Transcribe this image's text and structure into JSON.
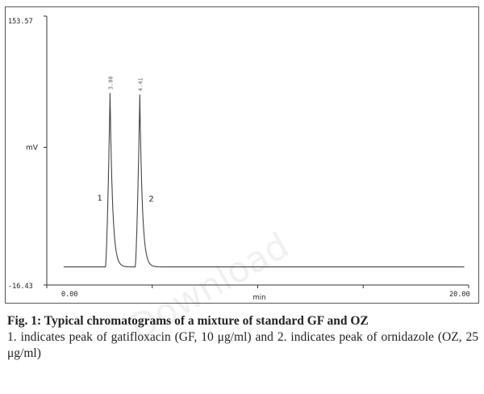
{
  "chart_data": {
    "type": "line",
    "title": "",
    "xlabel": "min",
    "ylabel": "mV",
    "xlim": [
      0.0,
      20.0
    ],
    "ylim": [
      -16.43,
      153.57
    ],
    "y_tick_labels": [
      "153.57",
      "-16.43"
    ],
    "x_tick_labels": [
      "0.00",
      "20.00"
    ],
    "baseline": -5,
    "grid": false,
    "legend": "none",
    "peaks": [
      {
        "label": "1",
        "retention_label": "3.00",
        "x": 3.0,
        "height": 110
      },
      {
        "label": "2",
        "retention_label": "4.41",
        "x": 4.41,
        "height": 109
      }
    ],
    "series": [
      {
        "values": [
          [
            0.0,
            -5
          ],
          [
            2.78,
            -5
          ],
          [
            3.0,
            105
          ],
          [
            3.6,
            -5
          ],
          [
            4.2,
            -5
          ],
          [
            4.41,
            104
          ],
          [
            5.05,
            -5
          ],
          [
            20.0,
            -5
          ]
        ]
      }
    ]
  },
  "caption": {
    "title": "Fig. 1: Typical chromatograms of a mixture of standard GF and OZ",
    "note": "1. indicates peak of gatifloxacin (GF, 10 μg/ml) and 2. indicates peak of ornidazole (OZ, 25 μg/ml)"
  },
  "watermark": "Download"
}
